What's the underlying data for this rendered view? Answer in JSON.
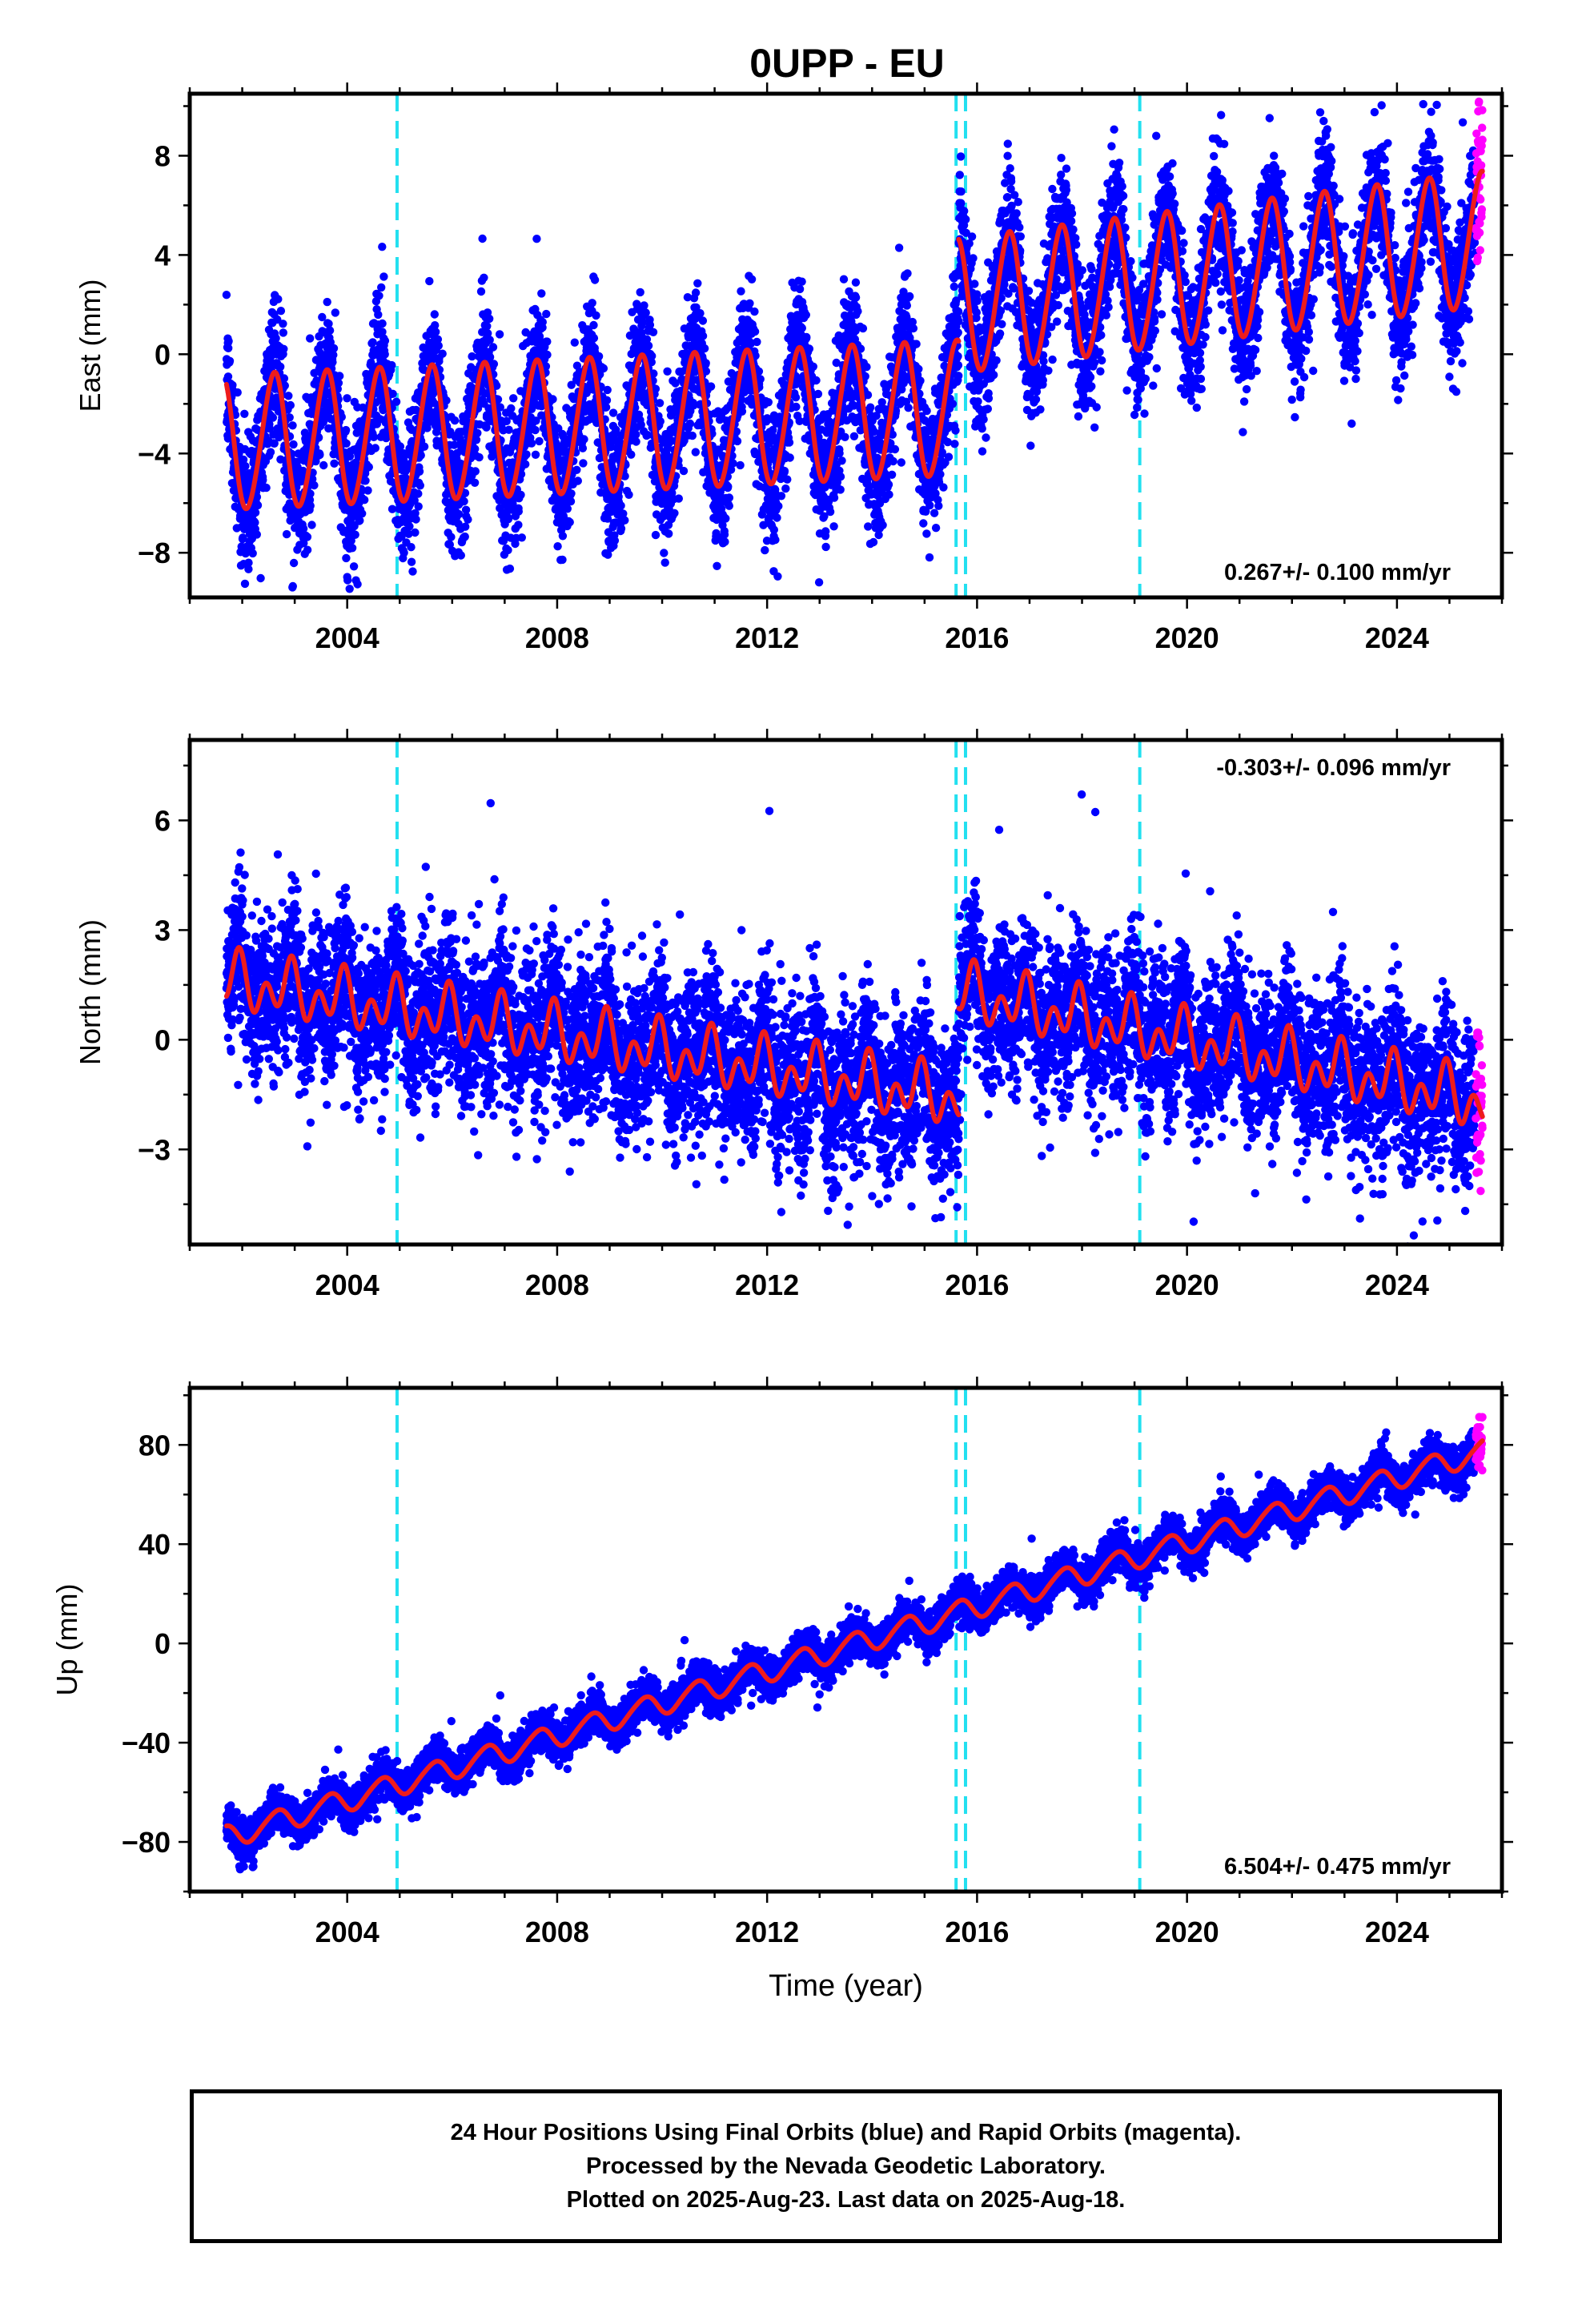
{
  "title": "0UPP - EU",
  "footer": {
    "line1": "24 Hour Positions Using Final Orbits (blue) and Rapid Orbits (magenta).",
    "line2": "Processed by the Nevada Geodetic Laboratory.",
    "line3": "Plotted on 2025-Aug-23. Last data on 2025-Aug-18."
  },
  "colors": {
    "final_orbits": "#0000ff",
    "rapid_orbits": "#ff00ff",
    "model_fit": "#ee1c1c",
    "step_lines": "#22e0f0",
    "frame": "#000000"
  },
  "chart_data": [
    {
      "type": "scatter",
      "id": "east",
      "ylabel": "East (mm)",
      "xlabel": "",
      "xlim": [
        2001.0,
        2026.0
      ],
      "ylim": [
        -9.8,
        10.5
      ],
      "xticks": [
        2004,
        2008,
        2012,
        2016,
        2020,
        2024
      ],
      "yticks": [
        -8,
        -4,
        0,
        4,
        8
      ],
      "grid": false,
      "rate_text": "0.267+/- 0.100 mm/yr",
      "rate_position": "bottom-right",
      "data_start": 2001.7,
      "final_end": 2025.5,
      "rapid_end": 2025.63,
      "step_epochs": [
        2004.95,
        2015.6,
        2015.78,
        2019.1
      ],
      "model": {
        "segments": [
          {
            "start": 2001.7,
            "end": 2015.65,
            "intercept_at_start": -3.6,
            "rate": 0.1
          },
          {
            "start": 2015.65,
            "end": 2025.63,
            "intercept_at_start": 1.9,
            "rate": 0.27
          }
        ],
        "annual_amplitude": 2.7,
        "annual_peak_phase": 0.6,
        "semiannual_amplitude": 0.2,
        "semiannual_peak_phase": 0.2
      },
      "noise_sigma": 1.3
    },
    {
      "type": "scatter",
      "id": "north",
      "ylabel": "North (mm)",
      "xlabel": "",
      "xlim": [
        2001.0,
        2026.0
      ],
      "ylim": [
        -5.6,
        8.2
      ],
      "xticks": [
        2004,
        2008,
        2012,
        2016,
        2020,
        2024
      ],
      "yticks": [
        -3,
        0,
        3,
        6
      ],
      "grid": false,
      "rate_text": "-0.303+/- 0.096 mm/yr",
      "rate_position": "top-right",
      "data_start": 2001.7,
      "final_end": 2025.5,
      "rapid_end": 2025.63,
      "step_epochs": [
        2004.95,
        2015.6,
        2015.78,
        2019.1
      ],
      "model": {
        "segments": [
          {
            "start": 2001.7,
            "end": 2015.65,
            "intercept_at_start": 1.6,
            "rate": -0.23
          },
          {
            "start": 2015.65,
            "end": 2025.63,
            "intercept_at_start": 1.3,
            "rate": -0.3
          }
        ],
        "annual_amplitude": 0.45,
        "annual_peak_phase": 0.9,
        "semiannual_amplitude": 0.55,
        "semiannual_peak_phase": 0.45
      },
      "noise_sigma": 1.05
    },
    {
      "type": "scatter",
      "id": "up",
      "ylabel": "Up (mm)",
      "xlabel": "Time (year)",
      "xlim": [
        2001.0,
        2026.0
      ],
      "ylim": [
        -100,
        103
      ],
      "xticks": [
        2004,
        2008,
        2012,
        2016,
        2020,
        2024
      ],
      "yticks": [
        -80,
        -40,
        0,
        40,
        80
      ],
      "grid": false,
      "rate_text": "6.504+/- 0.475 mm/yr",
      "rate_position": "bottom-right",
      "data_start": 2001.7,
      "final_end": 2025.5,
      "rapid_end": 2025.63,
      "step_epochs": [
        2004.95,
        2015.6,
        2015.78,
        2019.1
      ],
      "model": {
        "segments": [
          {
            "start": 2001.7,
            "end": 2025.63,
            "intercept_at_start": -78.0,
            "rate": 6.5
          }
        ],
        "annual_amplitude": 4.5,
        "annual_peak_phase": 0.65,
        "semiannual_amplitude": 0.6,
        "semiannual_peak_phase": 0.3
      },
      "noise_sigma": 4.0
    }
  ]
}
